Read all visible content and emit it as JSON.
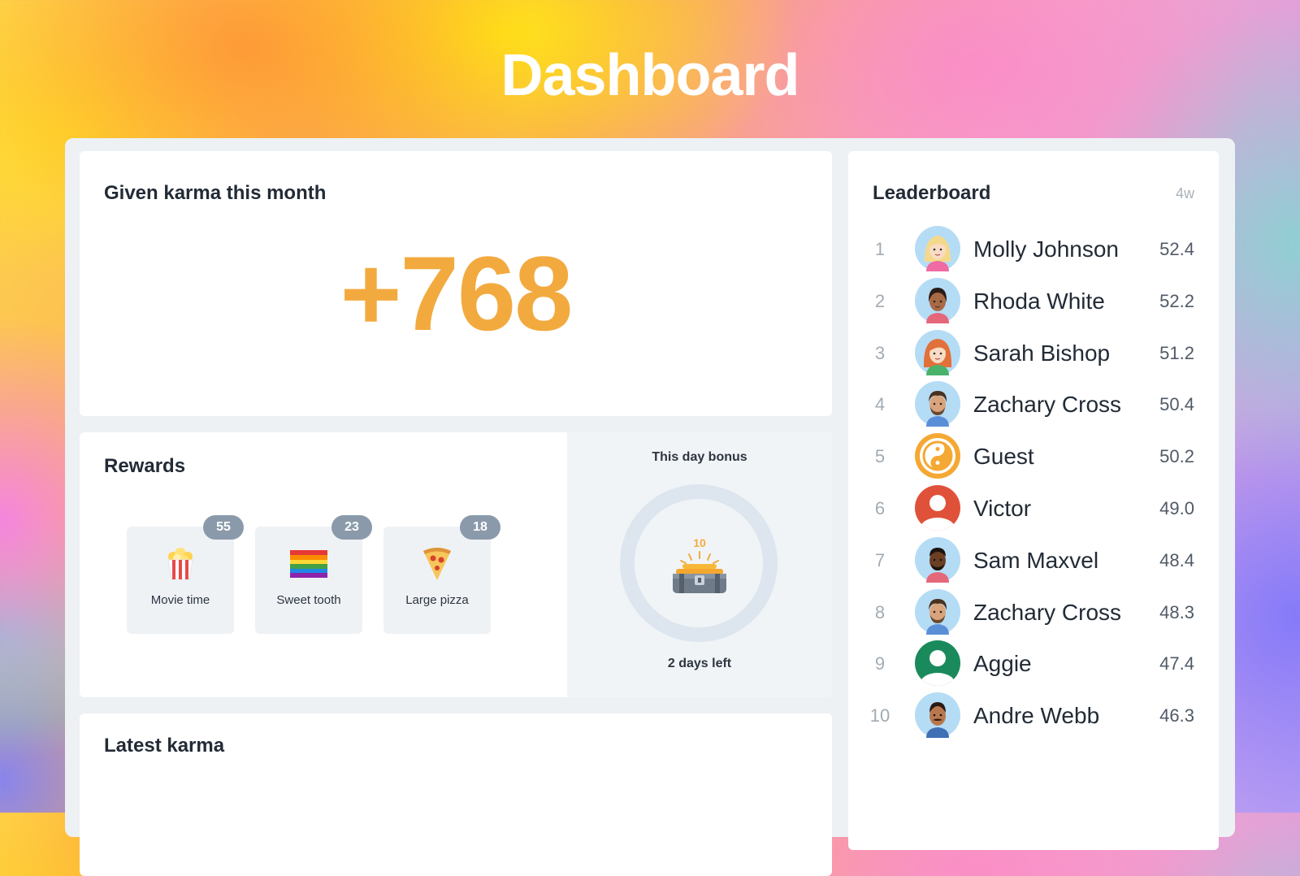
{
  "page": {
    "title": "Dashboard"
  },
  "karma": {
    "title": "Given karma this month",
    "value": "+768"
  },
  "rewards": {
    "title": "Rewards",
    "items": [
      {
        "label": "Movie time",
        "count": "55",
        "icon": "popcorn-icon"
      },
      {
        "label": "Sweet tooth",
        "count": "23",
        "icon": "rainbow-flag-icon"
      },
      {
        "label": "Large pizza",
        "count": "18",
        "icon": "pizza-icon"
      }
    ]
  },
  "bonus": {
    "title": "This day bonus",
    "coins": "10",
    "left": "2 days left",
    "icon": "treasure-chest-icon"
  },
  "latest": {
    "title": "Latest karma"
  },
  "leaderboard": {
    "title": "Leaderboard",
    "period": "4w",
    "rows": [
      {
        "rank": "1",
        "name": "Molly Johnson",
        "score": "52.4",
        "avatar": "avatar-blonde-woman"
      },
      {
        "rank": "2",
        "name": "Rhoda White",
        "score": "52.2",
        "avatar": "avatar-dark-hair-woman"
      },
      {
        "rank": "3",
        "name": "Sarah Bishop",
        "score": "51.2",
        "avatar": "avatar-redhead-woman"
      },
      {
        "rank": "4",
        "name": "Zachary Cross",
        "score": "50.4",
        "avatar": "avatar-bearded-man"
      },
      {
        "rank": "5",
        "name": "Guest",
        "score": "50.2",
        "avatar": "yin-yang-icon"
      },
      {
        "rank": "6",
        "name": "Victor",
        "score": "49.0",
        "avatar": "default-user-red"
      },
      {
        "rank": "7",
        "name": "Sam Maxvel",
        "score": "48.4",
        "avatar": "avatar-dark-man"
      },
      {
        "rank": "8",
        "name": "Zachary Cross",
        "score": "48.3",
        "avatar": "avatar-bearded-man"
      },
      {
        "rank": "9",
        "name": "Aggie",
        "score": "47.4",
        "avatar": "default-user-green"
      },
      {
        "rank": "10",
        "name": "Andre Webb",
        "score": "46.3",
        "avatar": "avatar-mustache-man"
      }
    ]
  },
  "colors": {
    "accent": "#f2aa3f",
    "badge": "#8a9aab",
    "avatar_bg": "#b5dcf5",
    "default_red": "#e0513a",
    "default_green": "#1a8a5c"
  }
}
